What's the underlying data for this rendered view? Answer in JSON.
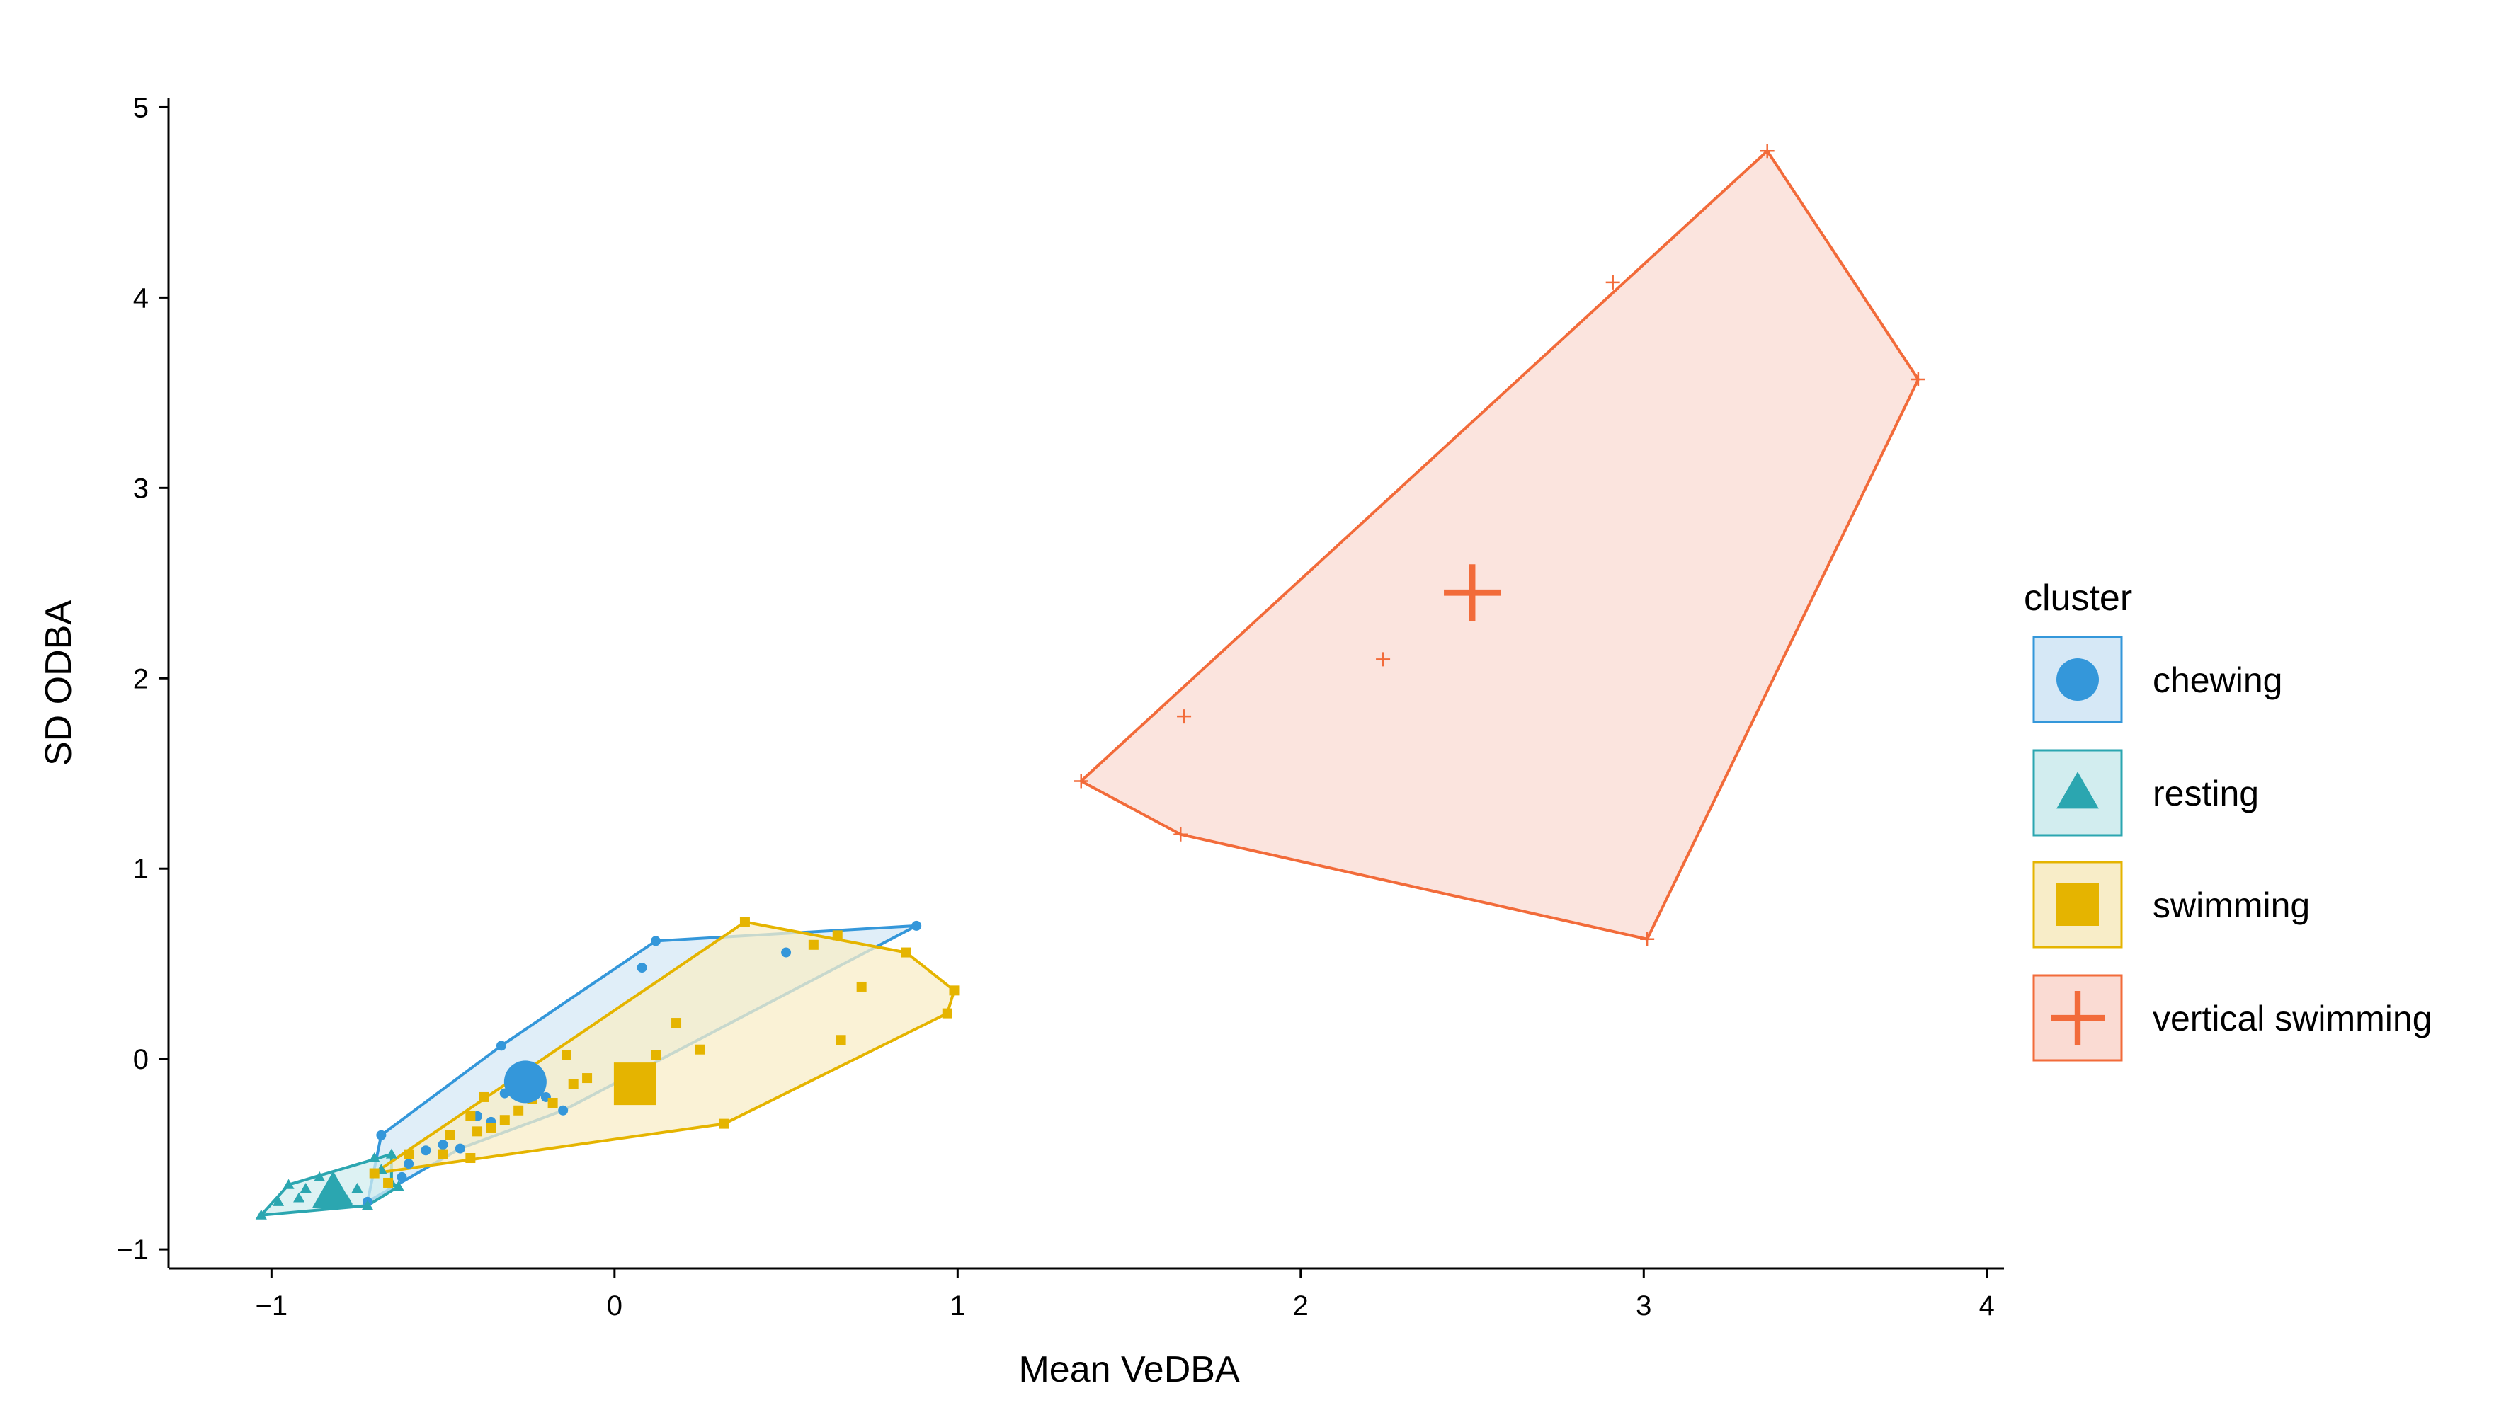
{
  "chart_data": {
    "type": "scatter",
    "title": "",
    "xlabel": "Mean VeDBA",
    "ylabel": "SD ODBA",
    "xlim": [
      -1.3,
      4.05
    ],
    "ylim": [
      -1.1,
      5.05
    ],
    "x_ticks": [
      -1,
      0,
      1,
      2,
      3,
      4
    ],
    "y_ticks": [
      -1,
      0,
      1,
      2,
      3,
      4,
      5
    ],
    "x_tick_labels": [
      "−1",
      "0",
      "1",
      "2",
      "3",
      "4"
    ],
    "y_tick_labels": [
      "−1",
      "0",
      "1",
      "2",
      "3",
      "4",
      "5"
    ],
    "grid": false,
    "legend": {
      "title": "cluster",
      "placement": "right",
      "items": [
        "chewing",
        "resting",
        "swimming",
        "vertical swimming"
      ]
    },
    "series": [
      {
        "name": "chewing",
        "color": "#3497DA",
        "fill": "#D6E8F6",
        "marker": "circle",
        "centroid": [
          -0.26,
          -0.12
        ],
        "hull": [
          [
            -0.72,
            -0.75
          ],
          [
            -0.68,
            -0.4
          ],
          [
            -0.33,
            0.07
          ],
          [
            0.12,
            0.62
          ],
          [
            0.88,
            0.7
          ],
          [
            -0.15,
            -0.27
          ],
          [
            -0.45,
            -0.47
          ]
        ],
        "points": [
          [
            0.12,
            0.62
          ],
          [
            0.08,
            0.48
          ],
          [
            0.88,
            0.7
          ],
          [
            0.5,
            0.56
          ],
          [
            -0.33,
            0.07
          ],
          [
            -0.68,
            -0.4
          ],
          [
            -0.72,
            -0.75
          ],
          [
            -0.55,
            -0.48
          ],
          [
            -0.5,
            -0.45
          ],
          [
            -0.45,
            -0.47
          ],
          [
            -0.36,
            -0.33
          ],
          [
            -0.15,
            -0.27
          ],
          [
            -0.2,
            -0.2
          ],
          [
            -0.32,
            -0.18
          ],
          [
            -0.4,
            -0.3
          ],
          [
            -0.6,
            -0.55
          ],
          [
            -0.62,
            -0.62
          ]
        ]
      },
      {
        "name": "resting",
        "color": "#2BA6B0",
        "fill": "#D2EDEF",
        "marker": "triangle",
        "centroid": [
          -0.82,
          -0.7
        ],
        "hull": [
          [
            -1.03,
            -0.82
          ],
          [
            -0.95,
            -0.66
          ],
          [
            -0.65,
            -0.5
          ],
          [
            -0.65,
            -0.65
          ],
          [
            -0.63,
            -0.67
          ],
          [
            -0.72,
            -0.77
          ]
        ],
        "points": [
          [
            -1.03,
            -0.82
          ],
          [
            -0.98,
            -0.75
          ],
          [
            -0.95,
            -0.66
          ],
          [
            -0.9,
            -0.68
          ],
          [
            -0.86,
            -0.62
          ],
          [
            -0.8,
            -0.72
          ],
          [
            -0.75,
            -0.68
          ],
          [
            -0.7,
            -0.52
          ],
          [
            -0.68,
            -0.58
          ],
          [
            -0.65,
            -0.5
          ],
          [
            -0.65,
            -0.65
          ],
          [
            -0.63,
            -0.67
          ],
          [
            -0.72,
            -0.77
          ],
          [
            -0.78,
            -0.74
          ],
          [
            -0.84,
            -0.7
          ],
          [
            -0.92,
            -0.73
          ]
        ]
      },
      {
        "name": "swimming",
        "color": "#E5B400",
        "fill": "#F8EDC8",
        "marker": "square",
        "centroid": [
          0.06,
          -0.13
        ],
        "hull": [
          [
            -0.7,
            -0.6
          ],
          [
            0.38,
            0.72
          ],
          [
            0.85,
            0.56
          ],
          [
            0.99,
            0.36
          ],
          [
            0.97,
            0.24
          ],
          [
            0.32,
            -0.34
          ],
          [
            -0.7,
            -0.6
          ]
        ],
        "points": [
          [
            0.38,
            0.72
          ],
          [
            0.65,
            0.65
          ],
          [
            0.58,
            0.6
          ],
          [
            0.85,
            0.56
          ],
          [
            0.99,
            0.36
          ],
          [
            0.72,
            0.38
          ],
          [
            0.97,
            0.24
          ],
          [
            0.66,
            0.1
          ],
          [
            0.32,
            -0.34
          ],
          [
            0.25,
            0.05
          ],
          [
            0.18,
            0.19
          ],
          [
            0.12,
            0.02
          ],
          [
            0.02,
            -0.14
          ],
          [
            -0.08,
            -0.1
          ],
          [
            -0.12,
            -0.13
          ],
          [
            -0.14,
            0.02
          ],
          [
            -0.18,
            -0.23
          ],
          [
            -0.24,
            -0.21
          ],
          [
            -0.28,
            -0.27
          ],
          [
            -0.32,
            -0.32
          ],
          [
            -0.36,
            -0.36
          ],
          [
            -0.4,
            -0.38
          ],
          [
            -0.42,
            -0.3
          ],
          [
            -0.38,
            -0.2
          ],
          [
            -0.48,
            -0.4
          ],
          [
            -0.5,
            -0.5
          ],
          [
            -0.42,
            -0.52
          ],
          [
            -0.6,
            -0.5
          ],
          [
            -0.7,
            -0.6
          ],
          [
            -0.66,
            -0.65
          ]
        ]
      },
      {
        "name": "vertical swimming",
        "color": "#F26B3A",
        "fill": "#FADBD3",
        "marker": "plus",
        "centroid": [
          2.5,
          2.45
        ],
        "hull": [
          [
            1.36,
            1.46
          ],
          [
            3.36,
            4.77
          ],
          [
            3.8,
            3.57
          ],
          [
            3.01,
            0.63
          ],
          [
            1.65,
            1.18
          ]
        ],
        "points": [
          [
            1.36,
            1.46
          ],
          [
            1.65,
            1.18
          ],
          [
            1.66,
            1.8
          ],
          [
            2.24,
            2.1
          ],
          [
            2.91,
            4.08
          ],
          [
            3.36,
            4.77
          ],
          [
            3.8,
            3.57
          ],
          [
            3.01,
            0.63
          ]
        ]
      }
    ]
  }
}
